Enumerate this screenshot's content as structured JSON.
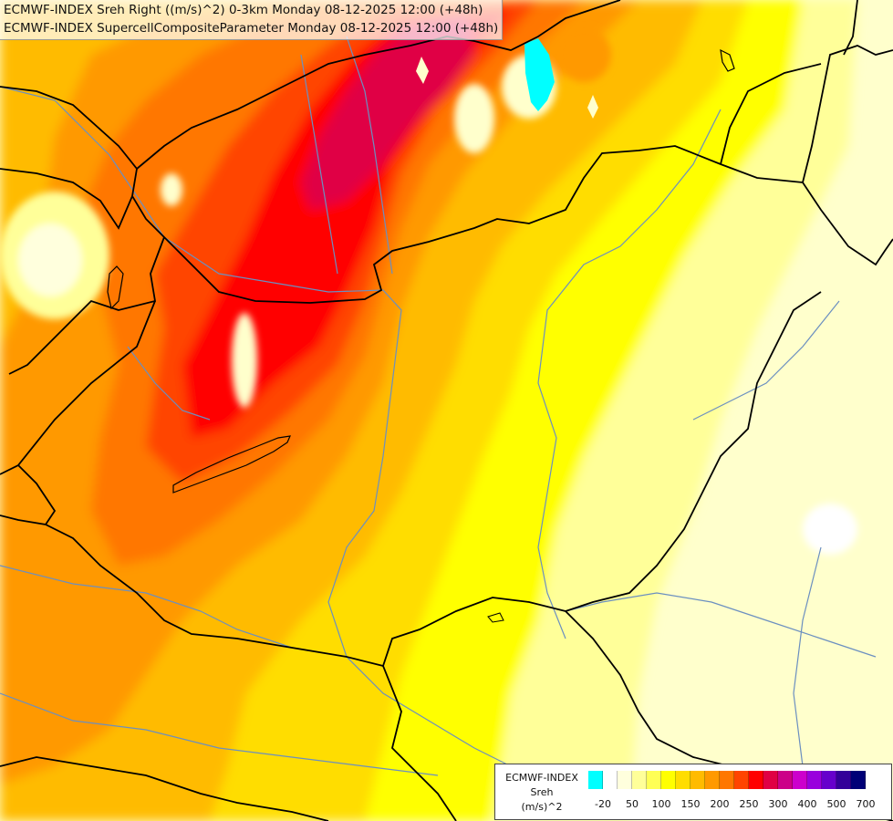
{
  "header": {
    "line1": "ECMWF-INDEX Sreh Right ((m/s)^2) 0-3km Monday 08-12-2025 12:00 (+48h)",
    "line2": "ECMWF-INDEX SupercellCompositeParameter Monday 08-12-2025 12:00 (+48h)"
  },
  "legend": {
    "title_line1": "ECMWF-INDEX",
    "title_line2": "Sreh",
    "title_line3": "(m/s)^2",
    "swatch_colors": [
      "#00ffff",
      "#ffffff",
      "#ffffdd",
      "#ffff99",
      "#ffff55",
      "#ffff00",
      "#ffdd00",
      "#ffbb00",
      "#ff9900",
      "#ff7700",
      "#ff4400",
      "#ff0000",
      "#e00044",
      "#cc0088",
      "#cc00cc",
      "#9900dd",
      "#6600cc",
      "#330099",
      "#000077"
    ],
    "ticks": [
      "-20",
      "50",
      "100",
      "150",
      "200",
      "250",
      "300",
      "400",
      "500",
      "700"
    ]
  },
  "colors": {
    "background": "#ffffcc",
    "border": "#000000",
    "river": "#6b8fc0"
  }
}
